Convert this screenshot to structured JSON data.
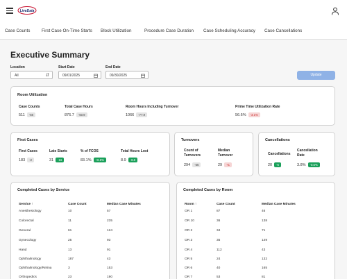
{
  "header": {
    "logo_text": "LiveData"
  },
  "nav": {
    "tabs": [
      "Case Counts",
      "First Case On-Time Starts",
      "Block Utilization",
      "Procedure Case Duration",
      "Case Scheduling Accuracy",
      "Case Cancellations"
    ]
  },
  "page": {
    "title": "Executive Summary"
  },
  "filters": {
    "location_label": "Location",
    "location_value": "All",
    "start_label": "Start Date",
    "start_value": "09/01/2025",
    "end_label": "End Date",
    "end_value": "09/30/2025",
    "update_label": "Update"
  },
  "room_utilization": {
    "title": "Room Utilization",
    "metrics": [
      {
        "label": "Case Counts",
        "value": "511",
        "delta": "-56",
        "tone": "gray"
      },
      {
        "label": "Total Case Hours",
        "value": "876.7",
        "delta": "-50.9",
        "tone": "gray"
      },
      {
        "label": "Room Hours Including Turnover",
        "value": "1066",
        "delta": "-77.9",
        "tone": "gray"
      },
      {
        "label": "Prime Time Utilization Rate",
        "value": "56.6%",
        "delta": "-3.1%",
        "tone": "red"
      }
    ]
  },
  "first_cases": {
    "title": "First Cases",
    "metrics": [
      {
        "label": "First Cases",
        "value": "183",
        "delta": "-2",
        "tone": "gray"
      },
      {
        "label": "Late Starts",
        "value": "31",
        "delta": "-16",
        "tone": "green"
      },
      {
        "label": "% of FCOS",
        "value": "83.1%",
        "delta": "+8.5%",
        "tone": "green"
      },
      {
        "label": "Total Hours Lost",
        "value": "8.9",
        "delta": "-8.8",
        "tone": "green"
      }
    ]
  },
  "turnovers": {
    "title": "Turnovers",
    "metrics": [
      {
        "label": "Count of Turnovers",
        "value": "294",
        "delta": "-55",
        "tone": "gray"
      },
      {
        "label": "Median Turnover",
        "value": "29",
        "delta": "+1",
        "tone": "red"
      }
    ]
  },
  "cancellations": {
    "title": "Cancellations",
    "metrics": [
      {
        "label": "Cancellations",
        "value": "20",
        "delta": "-6",
        "tone": "green"
      },
      {
        "label": "Cancellation Rate",
        "value": "3.8%",
        "delta": "-0.6%",
        "tone": "green"
      }
    ]
  },
  "by_service": {
    "title": "Completed Cases by Service",
    "columns": [
      "Service ↑",
      "Case Count",
      "Median Case Minutes"
    ],
    "rows": [
      [
        "Anesthesiology",
        "10",
        "57"
      ],
      [
        "Colorectal",
        "11",
        "235"
      ],
      [
        "General",
        "61",
        "124"
      ],
      [
        "Gynecology",
        "25",
        "93"
      ],
      [
        "Hand",
        "13",
        "91"
      ],
      [
        "Ophthalmology",
        "187",
        "43"
      ],
      [
        "Ophthalmology/Retina",
        "3",
        "153"
      ],
      [
        "Orthopedics",
        "23",
        "190"
      ]
    ]
  },
  "by_room": {
    "title": "Completed Cases by Room",
    "columns": [
      "Room ↑",
      "Case Count",
      "Median Case Minutes"
    ],
    "rows": [
      [
        "OR 1",
        "87",
        "46"
      ],
      [
        "OR 10",
        "36",
        "138"
      ],
      [
        "OR 2",
        "34",
        "71"
      ],
      [
        "OR 3",
        "35",
        "149"
      ],
      [
        "OR 4",
        "112",
        "43"
      ],
      [
        "OR 5",
        "24",
        "132"
      ],
      [
        "OR 6",
        "40",
        "165"
      ],
      [
        "OR 7",
        "53",
        "81"
      ]
    ]
  }
}
